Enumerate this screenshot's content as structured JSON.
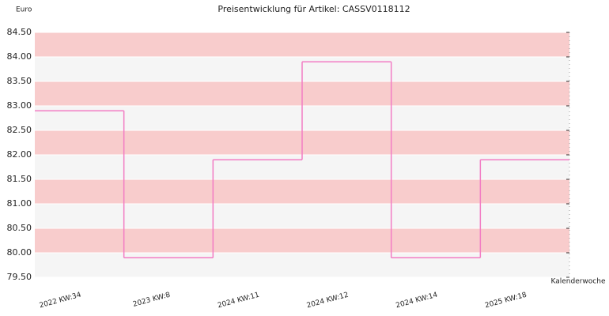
{
  "chart_data": {
    "type": "step",
    "title": "Preisentwicklung für Artikel: CASSV0118112",
    "y_label": "Euro",
    "x_label": "Kalenderwoche",
    "categories": [
      "2022 KW:34",
      "2023 KW:8",
      "2024 KW:11",
      "2024 KW:12",
      "2024 KW:14",
      "2025 KW:18"
    ],
    "values": [
      82.9,
      79.9,
      81.9,
      83.9,
      79.9,
      81.9
    ],
    "color": "#f27cc4",
    "ylim": [
      79.5,
      84.5
    ],
    "yticks": [
      {
        "value": 79.5,
        "label": "79.50"
      },
      {
        "value": 80,
        "label": "80.00"
      },
      {
        "value": 80.5,
        "label": "80.50"
      },
      {
        "value": 81,
        "label": "81.00"
      },
      {
        "value": 81.5,
        "label": "81.50"
      },
      {
        "value": 82,
        "label": "82.00"
      },
      {
        "value": 82.5,
        "label": "82.50"
      },
      {
        "value": 83,
        "label": "83.00"
      },
      {
        "value": 83.5,
        "label": "83.50"
      },
      {
        "value": 84,
        "label": "84.00"
      },
      {
        "value": 84.5,
        "label": "84.50"
      }
    ],
    "band_colors": [
      "#f5f5f5",
      "#f8cccc"
    ]
  }
}
